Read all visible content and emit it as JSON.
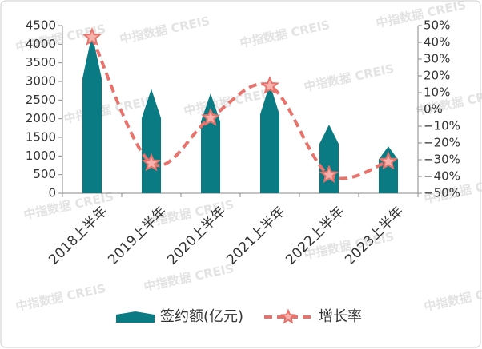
{
  "chart_data": {
    "type": "bar-line",
    "categories": [
      "2018上半年",
      "2019上半年",
      "2020上半年",
      "2021上半年",
      "2022上半年",
      "2023上半年"
    ],
    "series": [
      {
        "name": "签约额(亿元)",
        "type": "bar",
        "color": "#0b7b83",
        "values": [
          4280,
          2800,
          2680,
          2940,
          1840,
          1260
        ]
      },
      {
        "name": "增长率",
        "type": "line",
        "axis": "y2",
        "color": "#e8736c",
        "values": [
          43,
          -32,
          -5,
          14,
          -39,
          -31
        ]
      }
    ],
    "ylim": [
      0,
      4500
    ],
    "yticks": [
      0,
      500,
      1000,
      1500,
      2000,
      2500,
      3000,
      3500,
      4000,
      4500
    ],
    "y2lim": [
      -50,
      50
    ],
    "y2ticks": [
      {
        "value": -50,
        "label": "−50%"
      },
      {
        "value": -40,
        "label": "−40%"
      },
      {
        "value": -30,
        "label": "−30%"
      },
      {
        "value": -20,
        "label": "−20%"
      },
      {
        "value": -10,
        "label": "−10%"
      },
      {
        "value": 0,
        "label": "0%"
      },
      {
        "value": 10,
        "label": "10%"
      },
      {
        "value": 20,
        "label": "20%"
      },
      {
        "value": 30,
        "label": "30%"
      },
      {
        "value": 40,
        "label": "40%"
      },
      {
        "value": 50,
        "label": "50%"
      }
    ],
    "legend": "bottom",
    "watermark": "中指数据 CREIS"
  }
}
